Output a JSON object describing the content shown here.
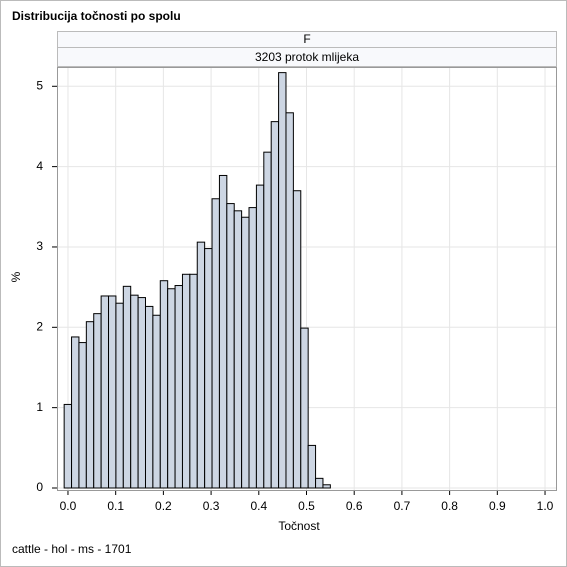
{
  "chart_data": {
    "type": "histogram",
    "title": "Distribucija točnosti po spolu",
    "panel_labels": [
      "F",
      "3203 protok mlijeka"
    ],
    "xlabel": "Točnost",
    "ylabel": "%",
    "footnote": "cattle - hol - ms - 1701",
    "bins": [
      -0.008,
      0.0075,
      0.023,
      0.0385,
      0.054,
      0.0695,
      0.085,
      0.1005,
      0.116,
      0.1315,
      0.147,
      0.1625,
      0.178,
      0.1935,
      0.209,
      0.2245,
      0.24,
      0.2555,
      0.271,
      0.2865,
      0.302,
      0.3175,
      0.333,
      0.3485,
      0.364,
      0.3795,
      0.395,
      0.4105,
      0.426,
      0.4415,
      0.457,
      0.4725,
      0.488,
      0.5035,
      0.519,
      0.5345,
      0.55
    ],
    "values": [
      1.04,
      1.88,
      1.81,
      2.07,
      2.17,
      2.39,
      2.39,
      2.3,
      2.51,
      2.4,
      2.37,
      2.26,
      2.15,
      2.58,
      2.48,
      2.52,
      2.66,
      2.66,
      3.06,
      2.98,
      3.6,
      3.89,
      3.54,
      3.45,
      3.37,
      3.49,
      3.77,
      4.18,
      4.56,
      5.17,
      4.67,
      3.7,
      1.99,
      0.53,
      0.12,
      0.04
    ],
    "color": "#cdd6e3",
    "edge_color": "#000000",
    "xlim": [
      -0.023,
      1.023
    ],
    "ylim": [
      -0.025,
      5.24
    ],
    "xticks": [
      {
        "value": 0,
        "label": "0.0"
      },
      0.1,
      0.2,
      0.3,
      0.4,
      0.5,
      0.6,
      0.7,
      0.8,
      0.9,
      {
        "value": 1,
        "label": "1.0"
      }
    ],
    "yticks": [
      0,
      1,
      2,
      3,
      4,
      5
    ],
    "grid": true
  }
}
